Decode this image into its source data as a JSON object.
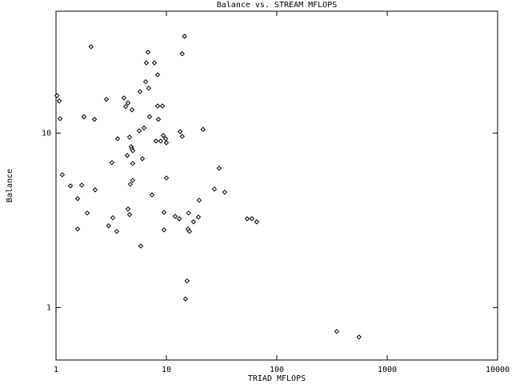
{
  "chart_data": {
    "type": "scatter",
    "title": "Balance vs. STREAM MFLOPS",
    "x_label": "TRIAD MFLOPS",
    "y_label": "Balance",
    "xlog": true,
    "ylog": true,
    "color": "#000000",
    "xlim": [
      1,
      10000
    ],
    "xticks": [
      1,
      10,
      100,
      1000,
      10000
    ],
    "ylim": [
      0.5,
      50
    ],
    "yticks": [
      1,
      10
    ],
    "x": [
      1.02,
      1.07,
      1.09,
      1.14,
      1.35,
      1.57,
      1.57,
      1.71,
      1.79,
      1.92,
      2.08,
      2.23,
      2.26,
      2.86,
      2.99,
      3.21,
      3.27,
      3.55,
      3.61,
      4.12,
      4.27,
      4.49,
      4.42,
      4.49,
      4.64,
      4.64,
      4.8,
      4.88,
      4.96,
      4.72,
      4.96,
      4.88,
      4.96,
      5.67,
      5.76,
      5.86,
      6.06,
      6.27,
      6.48,
      6.58,
      6.81,
      6.91,
      7.04,
      7.41,
      7.79,
      8.03,
      8.33,
      8.33,
      8.46,
      8.88,
      9.2,
      9.35,
      9.51,
      9.51,
      9.84,
      10,
      10,
      12.0,
      13.1,
      13.3,
      13.9,
      13.9,
      14.6,
      14.9,
      15.4,
      15.7,
      15.9,
      16.2,
      17.6,
      19.5,
      19.8,
      21.5,
      27.2,
      30.0,
      33.7,
      53.9,
      59.5,
      65.7,
      349,
      555
    ],
    "values": [
      16.4,
      15.3,
      12.1,
      5.77,
      4.98,
      4.21,
      2.82,
      5.03,
      12.4,
      3.48,
      31.3,
      12.0,
      4.73,
      15.6,
      2.94,
      6.77,
      3.27,
      2.73,
      9.29,
      15.9,
      14.2,
      14.9,
      7.44,
      3.67,
      3.41,
      9.48,
      8.36,
      8.1,
      7.93,
      5.09,
      5.36,
      13.6,
      6.69,
      10.3,
      17.3,
      2.25,
      7.13,
      10.7,
      19.7,
      25.3,
      29.1,
      18.1,
      12.4,
      4.43,
      25.3,
      9.0,
      21.6,
      14.3,
      12.0,
      9.0,
      14.3,
      9.69,
      3.51,
      2.79,
      9.29,
      8.81,
      5.53,
      3.33,
      3.23,
      10.2,
      9.59,
      28.5,
      35.9,
      1.12,
      1.42,
      2.82,
      3.48,
      2.73,
      3.1,
      3.3,
      4.12,
      10.5,
      4.77,
      6.29,
      4.58,
      3.23,
      3.23,
      3.1,
      0.728,
      0.677
    ]
  }
}
